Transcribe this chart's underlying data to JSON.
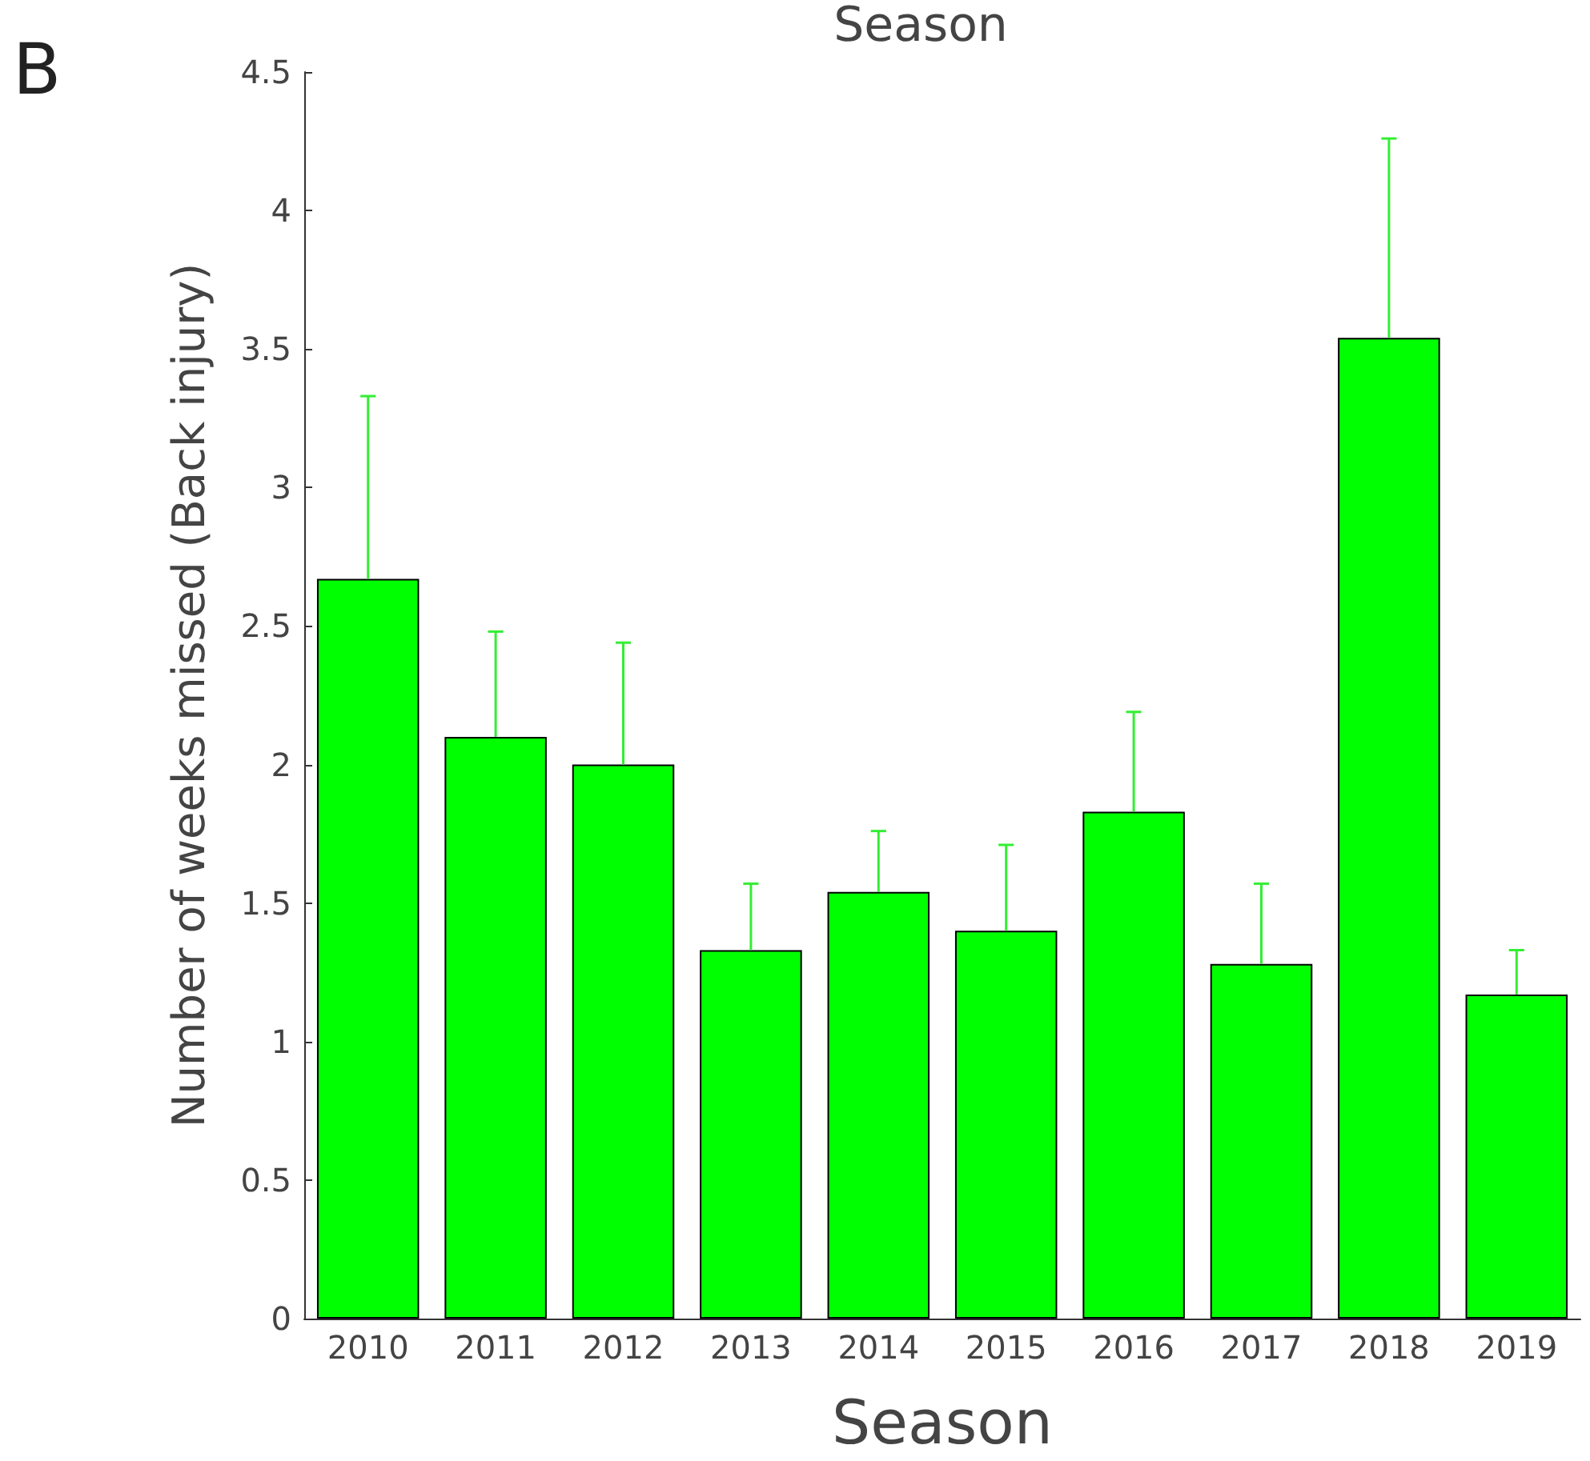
{
  "chart_data": {
    "type": "bar",
    "title": "Season",
    "xlabel": "Season",
    "ylabel": "Number of weeks missed (Back injury)",
    "annotations": [
      "B"
    ],
    "categories": [
      "2010",
      "2011",
      "2012",
      "2013",
      "2014",
      "2015",
      "2016",
      "2017",
      "2018",
      "2019"
    ],
    "values": [
      2.67,
      2.1,
      2.0,
      1.33,
      1.54,
      1.4,
      1.83,
      1.28,
      3.54,
      1.17
    ],
    "errors": [
      [
        2.67,
        3.33
      ],
      [
        2.1,
        2.48
      ],
      [
        2.0,
        2.44
      ],
      [
        1.33,
        1.57
      ],
      [
        1.54,
        1.76
      ],
      [
        1.4,
        1.71
      ],
      [
        1.83,
        2.19
      ],
      [
        1.28,
        1.57
      ],
      [
        3.54,
        4.26
      ],
      [
        1.17,
        1.33
      ]
    ],
    "color": "#00ff00",
    "ylim": [
      0,
      4.5
    ],
    "yticks": [
      0,
      0.5,
      1,
      1.5,
      2,
      2.5,
      3,
      3.5,
      4,
      4.5
    ],
    "grid": false
  }
}
